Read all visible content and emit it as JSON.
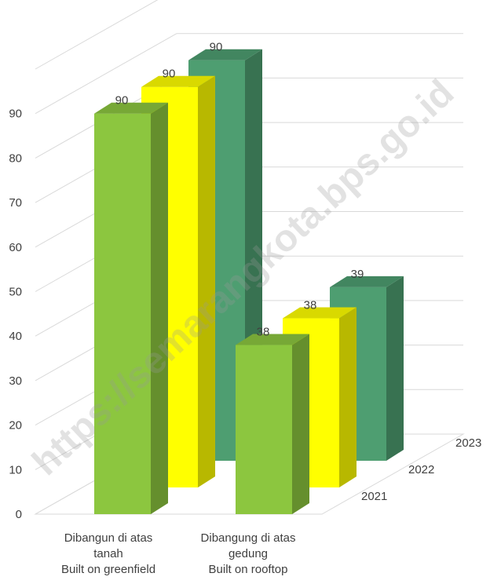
{
  "chart_data": {
    "type": "bar",
    "style": "3d-clustered-column",
    "categories": [
      [
        "Dibangun di atas",
        "tanah",
        "Built on greenfield"
      ],
      [
        "Dibangung di atas",
        "gedung",
        "Built on rooftop"
      ]
    ],
    "series": [
      {
        "name": "2021",
        "values": [
          90,
          38
        ],
        "color": "#8CC63F"
      },
      {
        "name": "2022",
        "values": [
          90,
          38
        ],
        "color": "#FFFF00"
      },
      {
        "name": "2023",
        "values": [
          90,
          39
        ],
        "color": "#4E9E71"
      }
    ],
    "yticks": [
      0,
      10,
      20,
      30,
      40,
      50,
      60,
      70,
      80,
      90
    ],
    "ylim": [
      0,
      100
    ],
    "grid": true,
    "data_labels": true,
    "title": "",
    "xlabel": "",
    "ylabel": ""
  },
  "watermark": "https://semarangkota.bps.go.id"
}
